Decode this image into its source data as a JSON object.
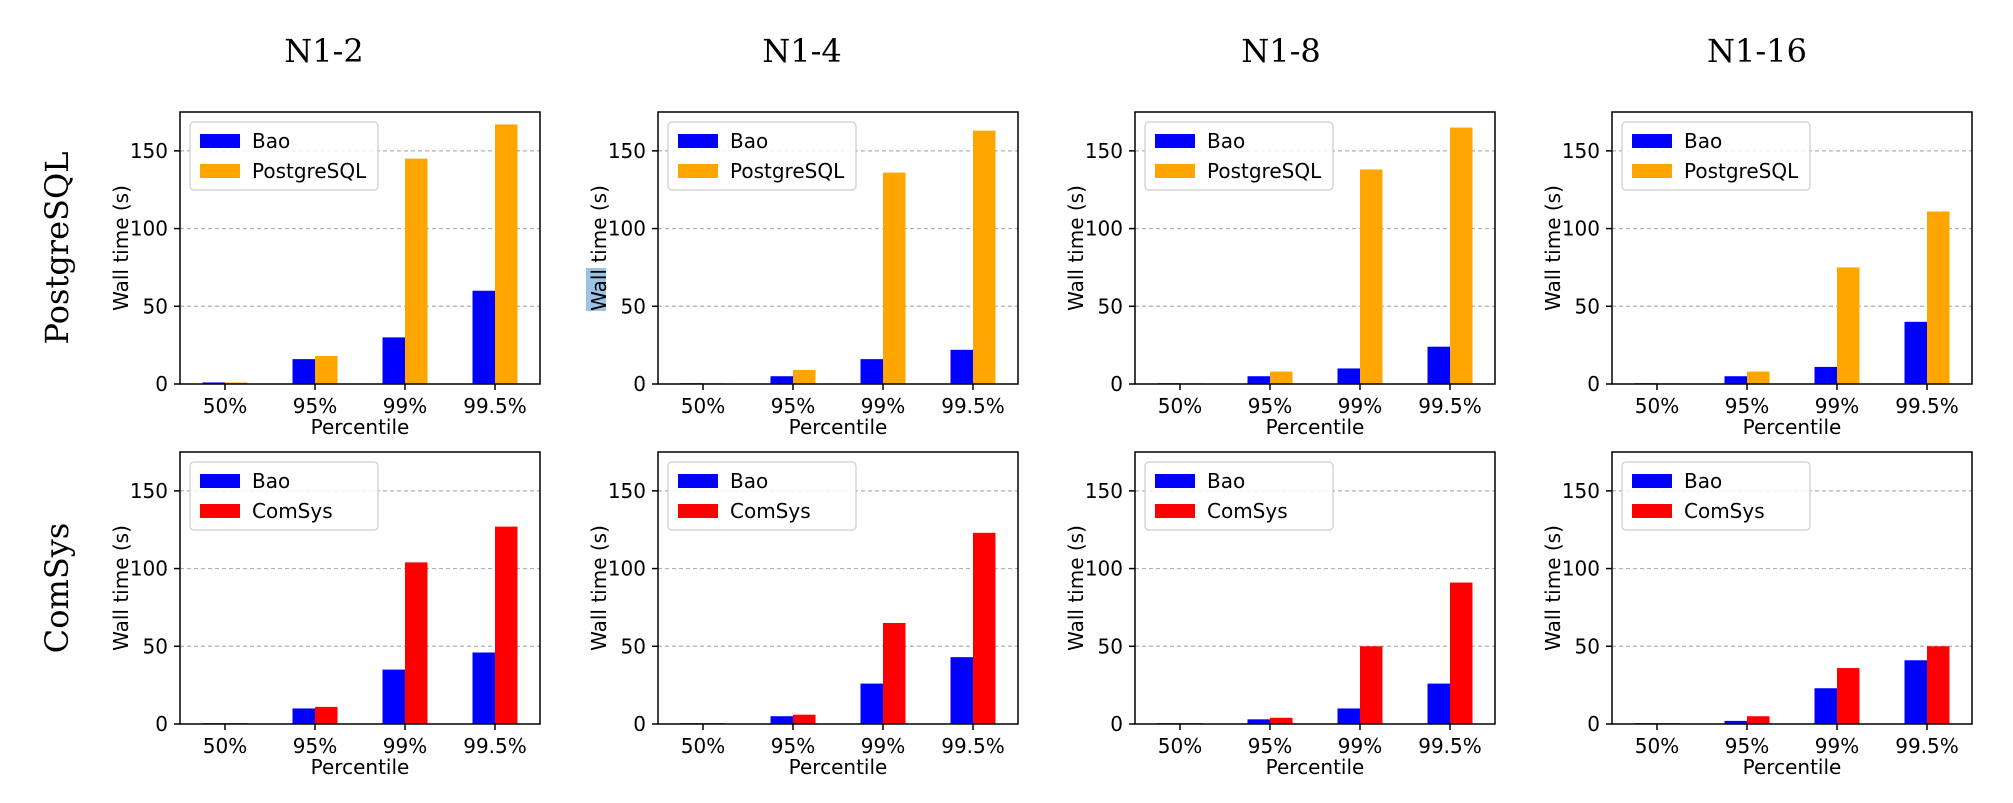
{
  "column_titles": [
    "N1-2",
    "N1-4",
    "N1-8",
    "N1-16"
  ],
  "row_titles": [
    "PostgreSQL",
    "ComSys"
  ],
  "colors": {
    "bao": "#0000ff",
    "PostgreSQL": "#ffa500",
    "ComSys": "#ff0000",
    "grid": "#b0b0b0",
    "highlight": "#9cc3e3"
  },
  "chart_data": [
    {
      "type": "bar",
      "row": 0,
      "col": 0,
      "title": "N1-2",
      "xlabel": "Percentile",
      "ylabel": "Wall time (s)",
      "ylim": [
        0,
        175
      ],
      "yticks": [
        0,
        50,
        100,
        150
      ],
      "grid": true,
      "legend": "top-left",
      "categories": [
        "50%",
        "95%",
        "99%",
        "99.5%"
      ],
      "series": [
        {
          "name": "Bao",
          "values": [
            1,
            16,
            30,
            60
          ]
        },
        {
          "name": "PostgreSQL",
          "values": [
            1,
            18,
            145,
            167
          ]
        }
      ]
    },
    {
      "type": "bar",
      "row": 0,
      "col": 1,
      "title": "N1-4",
      "xlabel": "Percentile",
      "ylabel": "Wall time (s)",
      "ylim": [
        0,
        175
      ],
      "yticks": [
        0,
        50,
        100,
        150
      ],
      "grid": true,
      "legend": "top-left",
      "categories": [
        "50%",
        "95%",
        "99%",
        "99.5%"
      ],
      "series": [
        {
          "name": "Bao",
          "values": [
            0.5,
            5,
            16,
            22
          ]
        },
        {
          "name": "PostgreSQL",
          "values": [
            0.5,
            9,
            136,
            163
          ]
        }
      ]
    },
    {
      "type": "bar",
      "row": 0,
      "col": 2,
      "title": "N1-8",
      "xlabel": "Percentile",
      "ylabel": "Wall time (s)",
      "ylim": [
        0,
        175
      ],
      "yticks": [
        0,
        50,
        100,
        150
      ],
      "grid": true,
      "legend": "top-left",
      "categories": [
        "50%",
        "95%",
        "99%",
        "99.5%"
      ],
      "series": [
        {
          "name": "Bao",
          "values": [
            0.5,
            5,
            10,
            24
          ]
        },
        {
          "name": "PostgreSQL",
          "values": [
            0.5,
            8,
            138,
            165
          ]
        }
      ]
    },
    {
      "type": "bar",
      "row": 0,
      "col": 3,
      "title": "N1-16",
      "xlabel": "Percentile",
      "ylabel": "Wall time (s)",
      "ylim": [
        0,
        175
      ],
      "yticks": [
        0,
        50,
        100,
        150
      ],
      "grid": true,
      "legend": "top-left",
      "categories": [
        "50%",
        "95%",
        "99%",
        "99.5%"
      ],
      "series": [
        {
          "name": "Bao",
          "values": [
            0.5,
            5,
            11,
            40
          ]
        },
        {
          "name": "PostgreSQL",
          "values": [
            0.5,
            8,
            75,
            111
          ]
        }
      ]
    },
    {
      "type": "bar",
      "row": 1,
      "col": 0,
      "title": "N1-2",
      "xlabel": "Percentile",
      "ylabel": "Wall time (s)",
      "ylim": [
        0,
        175
      ],
      "yticks": [
        0,
        50,
        100,
        150
      ],
      "grid": true,
      "legend": "top-left",
      "categories": [
        "50%",
        "95%",
        "99%",
        "99.5%"
      ],
      "series": [
        {
          "name": "Bao",
          "values": [
            0.5,
            10,
            35,
            46
          ]
        },
        {
          "name": "ComSys",
          "values": [
            0.5,
            11,
            104,
            127
          ]
        }
      ]
    },
    {
      "type": "bar",
      "row": 1,
      "col": 1,
      "title": "N1-4",
      "xlabel": "Percentile",
      "ylabel": "Wall time (s)",
      "ylim": [
        0,
        175
      ],
      "yticks": [
        0,
        50,
        100,
        150
      ],
      "grid": true,
      "legend": "top-left",
      "categories": [
        "50%",
        "95%",
        "99%",
        "99.5%"
      ],
      "series": [
        {
          "name": "Bao",
          "values": [
            0.5,
            5,
            26,
            43
          ]
        },
        {
          "name": "ComSys",
          "values": [
            0.5,
            6,
            65,
            123
          ]
        }
      ]
    },
    {
      "type": "bar",
      "row": 1,
      "col": 2,
      "title": "N1-8",
      "xlabel": "Percentile",
      "ylabel": "Wall time (s)",
      "ylim": [
        0,
        175
      ],
      "yticks": [
        0,
        50,
        100,
        150
      ],
      "grid": true,
      "legend": "top-left",
      "categories": [
        "50%",
        "95%",
        "99%",
        "99.5%"
      ],
      "series": [
        {
          "name": "Bao",
          "values": [
            0.5,
            3,
            10,
            26
          ]
        },
        {
          "name": "ComSys",
          "values": [
            0.5,
            4,
            50,
            91
          ]
        }
      ]
    },
    {
      "type": "bar",
      "row": 1,
      "col": 3,
      "title": "N1-16",
      "xlabel": "Percentile",
      "ylabel": "Wall time (s)",
      "ylim": [
        0,
        175
      ],
      "yticks": [
        0,
        50,
        100,
        150
      ],
      "grid": true,
      "legend": "top-left",
      "categories": [
        "50%",
        "95%",
        "99%",
        "99.5%"
      ],
      "series": [
        {
          "name": "Bao",
          "values": [
            0.5,
            2,
            23,
            41
          ]
        },
        {
          "name": "ComSys",
          "values": [
            0.5,
            5,
            36,
            50
          ]
        }
      ]
    }
  ]
}
